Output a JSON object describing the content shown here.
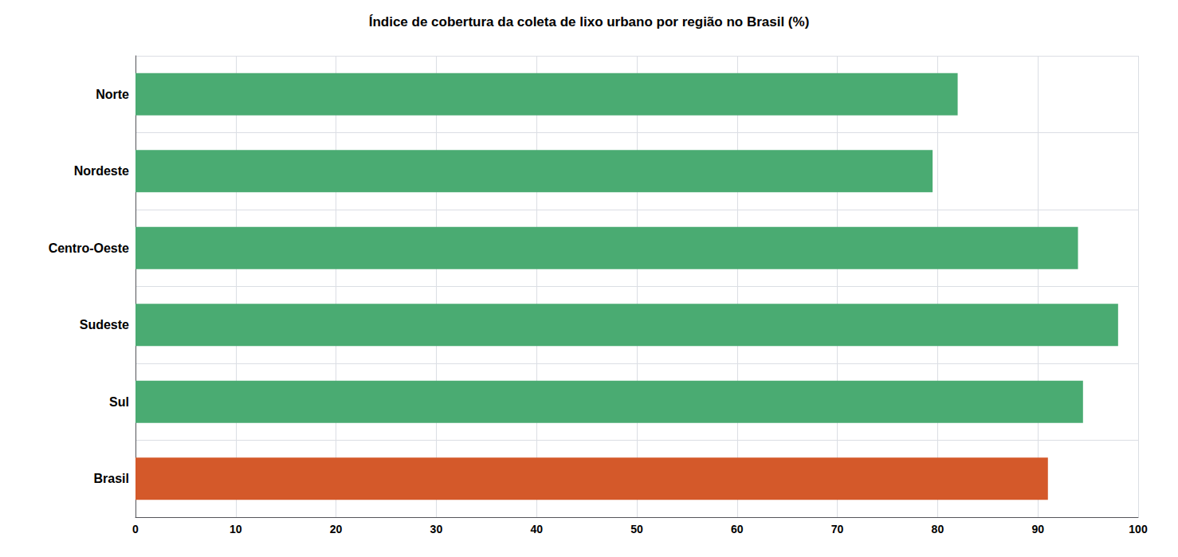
{
  "chart_data": {
    "type": "bar",
    "orientation": "horizontal",
    "title": "Índice de cobertura da coleta de lixo urbano por região no Brasil (%)",
    "categories": [
      "Norte",
      "Nordeste",
      "Centro-Oeste",
      "Sudeste",
      "Sul",
      "Brasil"
    ],
    "values": [
      82.0,
      79.5,
      94.0,
      98.0,
      94.5,
      91.0
    ],
    "colors": [
      "#4aab72",
      "#4aab72",
      "#4aab72",
      "#4aab72",
      "#4aab72",
      "#d4592a"
    ],
    "xlim": [
      0,
      100
    ],
    "xticks": [
      0,
      10,
      20,
      30,
      40,
      50,
      60,
      70,
      80,
      90,
      100
    ],
    "grid": true
  }
}
